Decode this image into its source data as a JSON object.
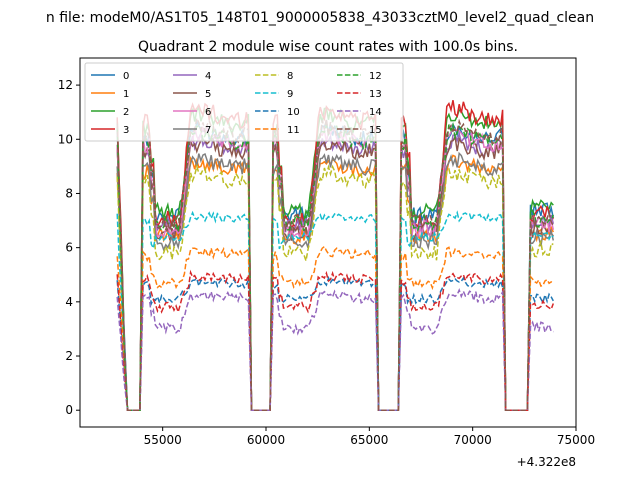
{
  "chart_data": {
    "type": "line",
    "suptitle": "n file: modeM0/AS1T05_148T01_9000005838_43033cztM0_level2_quad_clean",
    "title": "Quadrant 2 module wise count rates with 100.0s bins.",
    "xlabel": "",
    "ylabel": "",
    "x_offset_label": "+4.322e8",
    "xlim": [
      51000,
      75000
    ],
    "ylim": [
      -0.62,
      13.0
    ],
    "xticks": [
      55000,
      60000,
      65000,
      70000,
      75000
    ],
    "xtick_labels": [
      "55000",
      "60000",
      "65000",
      "70000",
      "75000"
    ],
    "yticks": [
      0,
      2,
      4,
      6,
      8,
      10,
      12
    ],
    "ytick_labels": [
      "0",
      "2",
      "4",
      "6",
      "8",
      "10",
      "12"
    ],
    "grid": false,
    "legend_location": "top-left",
    "legend_columns": 4,
    "segments": [
      {
        "start": 52800,
        "end": 53150,
        "shape": "decay"
      },
      {
        "start": 54050,
        "end": 59150,
        "shape": "bowl"
      },
      {
        "start": 60350,
        "end": 65300,
        "shape": "bowl"
      },
      {
        "start": 66550,
        "end": 71450,
        "shape": "bowl"
      },
      {
        "start": 72800,
        "end": 73900,
        "shape": "flat"
      }
    ],
    "gaps": [
      {
        "start": 53300,
        "end": 53900,
        "value": 0
      },
      {
        "start": 59300,
        "end": 60200,
        "value": 0
      },
      {
        "start": 65450,
        "end": 66400,
        "value": 0
      },
      {
        "start": 71600,
        "end": 72650,
        "value": 0
      }
    ],
    "series": [
      {
        "name": "0",
        "color": "#1f77b4",
        "style": "solid",
        "low": 7.2,
        "high": 10.2
      },
      {
        "name": "1",
        "color": "#ff7f0e",
        "style": "solid",
        "low": 6.4,
        "high": 9.0
      },
      {
        "name": "2",
        "color": "#2ca02c",
        "style": "solid",
        "low": 7.3,
        "high": 10.7
      },
      {
        "name": "3",
        "color": "#d62728",
        "style": "solid",
        "low": 7.0,
        "high": 10.9
      },
      {
        "name": "4",
        "color": "#9467bd",
        "style": "solid",
        "low": 6.8,
        "high": 9.8
      },
      {
        "name": "5",
        "color": "#8c564b",
        "style": "solid",
        "low": 6.5,
        "high": 9.7
      },
      {
        "name": "6",
        "color": "#e377c2",
        "style": "solid",
        "low": 6.7,
        "high": 10.0
      },
      {
        "name": "7",
        "color": "#7f7f7f",
        "style": "solid",
        "low": 6.2,
        "high": 9.1
      },
      {
        "name": "8",
        "color": "#bcbd22",
        "style": "dashed",
        "low": 5.8,
        "high": 8.6
      },
      {
        "name": "9",
        "color": "#17becf",
        "style": "dashed",
        "low": 6.4,
        "high": 7.1
      },
      {
        "name": "10",
        "color": "#1f77b4",
        "style": "dashed",
        "low": 4.1,
        "high": 4.7
      },
      {
        "name": "11",
        "color": "#ff7f0e",
        "style": "dashed",
        "low": 4.7,
        "high": 5.8
      },
      {
        "name": "12",
        "color": "#2ca02c",
        "style": "dashed",
        "low": 6.9,
        "high": 10.1
      },
      {
        "name": "13",
        "color": "#d62728",
        "style": "dashed",
        "low": 3.8,
        "high": 4.9
      },
      {
        "name": "14",
        "color": "#9467bd",
        "style": "dashed",
        "low": 3.0,
        "high": 4.2
      },
      {
        "name": "15",
        "color": "#8c564b",
        "style": "dashed",
        "low": 6.9,
        "high": 10.3
      }
    ]
  }
}
